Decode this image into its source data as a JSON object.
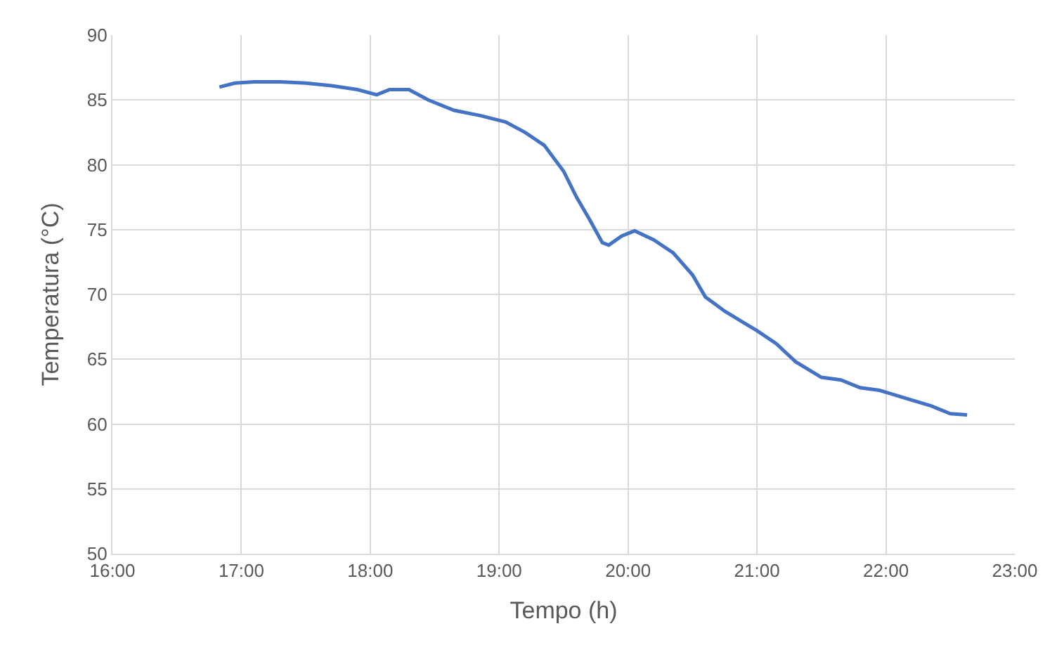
{
  "chart_data": {
    "type": "line",
    "xlabel": "Tempo (h)",
    "ylabel": "Temperatura (°C)",
    "xlim": [
      16,
      23
    ],
    "xticks": [
      {
        "value": 16,
        "label": "16:00"
      },
      {
        "value": 17,
        "label": "17:00"
      },
      {
        "value": 18,
        "label": "18:00"
      },
      {
        "value": 19,
        "label": "19:00"
      },
      {
        "value": 20,
        "label": "20:00"
      },
      {
        "value": 21,
        "label": "21:00"
      },
      {
        "value": 22,
        "label": "22:00"
      },
      {
        "value": 23,
        "label": "23:00"
      }
    ],
    "ylim": [
      50,
      90
    ],
    "yticks": [
      50,
      55,
      60,
      65,
      70,
      75,
      80,
      85,
      90
    ],
    "grid": true,
    "marker": "none",
    "line_style": "solid",
    "x": [
      16.83,
      16.95,
      17.1,
      17.3,
      17.5,
      17.7,
      17.9,
      18.05,
      18.15,
      18.3,
      18.45,
      18.65,
      18.85,
      19.05,
      19.2,
      19.35,
      19.5,
      19.6,
      19.7,
      19.8,
      19.85,
      19.95,
      20.05,
      20.2,
      20.35,
      20.5,
      20.6,
      20.75,
      20.9,
      21.0,
      21.15,
      21.3,
      21.5,
      21.65,
      21.8,
      21.95,
      22.15,
      22.35,
      22.5,
      22.63
    ],
    "series": [
      {
        "color": "#4472c4",
        "values": [
          86.0,
          86.3,
          86.4,
          86.4,
          86.3,
          86.1,
          85.8,
          85.4,
          85.8,
          85.8,
          85.0,
          84.2,
          83.8,
          83.3,
          82.5,
          81.5,
          79.5,
          77.5,
          75.8,
          74.0,
          73.8,
          74.5,
          74.9,
          74.2,
          73.2,
          71.5,
          69.8,
          68.7,
          67.8,
          67.2,
          66.2,
          64.8,
          63.6,
          63.4,
          62.8,
          62.6,
          62.0,
          61.4,
          60.8,
          60.7
        ]
      }
    ]
  }
}
